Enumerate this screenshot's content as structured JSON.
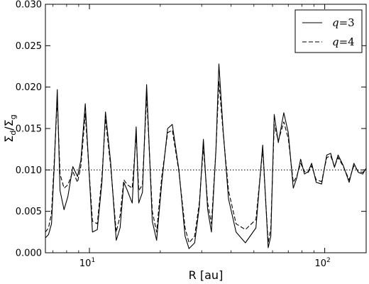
{
  "chart_data": {
    "type": "line",
    "xlabel": "R [au]",
    "ylabel": "Σd/Σg",
    "xscale": "log",
    "xlim": [
      6.5,
      150
    ],
    "ylim": [
      0,
      0.03
    ],
    "yticks": [
      "0.000",
      "0.005",
      "0.010",
      "0.015",
      "0.020",
      "0.025",
      "0.030"
    ],
    "xticks": [
      {
        "value": 10,
        "base": "10",
        "exp": "1"
      },
      {
        "value": 100,
        "base": "10",
        "exp": "2"
      }
    ],
    "grid": false,
    "legend_position": "top-right",
    "reference_line": {
      "y": 0.01,
      "style": "dotted"
    },
    "series": [
      {
        "name": "q=3",
        "label_var": "q",
        "label_eq": "=3",
        "style": "solid",
        "points": [
          [
            6.5,
            0.0018
          ],
          [
            6.7,
            0.0022
          ],
          [
            6.9,
            0.0035
          ],
          [
            7.1,
            0.011
          ],
          [
            7.3,
            0.0197
          ],
          [
            7.5,
            0.0075
          ],
          [
            7.8,
            0.0052
          ],
          [
            8.1,
            0.0068
          ],
          [
            8.5,
            0.0104
          ],
          [
            8.9,
            0.0092
          ],
          [
            9.2,
            0.0112
          ],
          [
            9.6,
            0.018
          ],
          [
            10.3,
            0.0025
          ],
          [
            10.8,
            0.0028
          ],
          [
            11.3,
            0.0085
          ],
          [
            11.7,
            0.017
          ],
          [
            12.3,
            0.011
          ],
          [
            13.0,
            0.0015
          ],
          [
            13.5,
            0.003
          ],
          [
            14.0,
            0.0085
          ],
          [
            14.5,
            0.0075
          ],
          [
            15.2,
            0.006
          ],
          [
            15.8,
            0.0152
          ],
          [
            16.2,
            0.006
          ],
          [
            16.8,
            0.0073
          ],
          [
            17.5,
            0.0203
          ],
          [
            18.5,
            0.0038
          ],
          [
            19.3,
            0.0015
          ],
          [
            20.3,
            0.0085
          ],
          [
            21.5,
            0.015
          ],
          [
            22.5,
            0.0155
          ],
          [
            24.0,
            0.01
          ],
          [
            25.5,
            0.002
          ],
          [
            26.5,
            0.0005
          ],
          [
            28.0,
            0.0012
          ],
          [
            29.3,
            0.0055
          ],
          [
            30.5,
            0.0137
          ],
          [
            31.8,
            0.0052
          ],
          [
            33.0,
            0.0025
          ],
          [
            34.5,
            0.0125
          ],
          [
            35.5,
            0.0228
          ],
          [
            37.0,
            0.0148
          ],
          [
            39.0,
            0.0065
          ],
          [
            42.0,
            0.0025
          ],
          [
            46.0,
            0.0012
          ],
          [
            51.0,
            0.003
          ],
          [
            54.5,
            0.013
          ],
          [
            57.5,
            0.0006
          ],
          [
            59.0,
            0.002
          ],
          [
            61.0,
            0.0167
          ],
          [
            63.5,
            0.0133
          ],
          [
            67.0,
            0.0169
          ],
          [
            70.0,
            0.0145
          ],
          [
            73.5,
            0.0078
          ],
          [
            76.0,
            0.009
          ],
          [
            79.0,
            0.0113
          ],
          [
            82.0,
            0.0095
          ],
          [
            85.0,
            0.0098
          ],
          [
            88.0,
            0.0108
          ],
          [
            92.0,
            0.0085
          ],
          [
            97.0,
            0.0083
          ],
          [
            102.0,
            0.0118
          ],
          [
            106.0,
            0.012
          ],
          [
            110.0,
            0.0103
          ],
          [
            114.0,
            0.0118
          ],
          [
            120.0,
            0.0105
          ],
          [
            127.0,
            0.0085
          ],
          [
            133.0,
            0.0108
          ],
          [
            139.0,
            0.0097
          ],
          [
            145.0,
            0.0095
          ],
          [
            150.0,
            0.0102
          ]
        ]
      },
      {
        "name": "q=4",
        "label_var": "q",
        "label_eq": "=4",
        "style": "dashed",
        "points": [
          [
            6.5,
            0.0025
          ],
          [
            6.7,
            0.003
          ],
          [
            6.9,
            0.0048
          ],
          [
            7.1,
            0.0115
          ],
          [
            7.3,
            0.0185
          ],
          [
            7.5,
            0.0095
          ],
          [
            7.8,
            0.0078
          ],
          [
            8.1,
            0.0082
          ],
          [
            8.5,
            0.0098
          ],
          [
            8.9,
            0.0085
          ],
          [
            9.2,
            0.0105
          ],
          [
            9.6,
            0.0168
          ],
          [
            10.3,
            0.0038
          ],
          [
            10.8,
            0.0035
          ],
          [
            11.3,
            0.0092
          ],
          [
            11.7,
            0.0162
          ],
          [
            12.3,
            0.0105
          ],
          [
            13.0,
            0.0025
          ],
          [
            13.5,
            0.0045
          ],
          [
            14.0,
            0.0088
          ],
          [
            14.5,
            0.0082
          ],
          [
            15.2,
            0.0078
          ],
          [
            15.8,
            0.0142
          ],
          [
            16.2,
            0.0075
          ],
          [
            16.8,
            0.0082
          ],
          [
            17.5,
            0.019
          ],
          [
            18.5,
            0.005
          ],
          [
            19.3,
            0.0025
          ],
          [
            20.3,
            0.0092
          ],
          [
            21.5,
            0.0145
          ],
          [
            22.5,
            0.0148
          ],
          [
            24.0,
            0.0098
          ],
          [
            25.5,
            0.003
          ],
          [
            26.5,
            0.0012
          ],
          [
            28.0,
            0.002
          ],
          [
            29.3,
            0.006
          ],
          [
            30.5,
            0.0128
          ],
          [
            31.8,
            0.006
          ],
          [
            33.0,
            0.0035
          ],
          [
            34.5,
            0.0125
          ],
          [
            35.5,
            0.0207
          ],
          [
            37.0,
            0.0145
          ],
          [
            39.0,
            0.0075
          ],
          [
            42.0,
            0.0035
          ],
          [
            46.0,
            0.0028
          ],
          [
            51.0,
            0.004
          ],
          [
            54.5,
            0.0125
          ],
          [
            57.5,
            0.0012
          ],
          [
            59.0,
            0.003
          ],
          [
            61.0,
            0.0155
          ],
          [
            63.5,
            0.0135
          ],
          [
            67.0,
            0.0158
          ],
          [
            70.0,
            0.0138
          ],
          [
            73.5,
            0.0085
          ],
          [
            76.0,
            0.0092
          ],
          [
            79.0,
            0.0108
          ],
          [
            82.0,
            0.0098
          ],
          [
            85.0,
            0.0097
          ],
          [
            88.0,
            0.0105
          ],
          [
            92.0,
            0.0088
          ],
          [
            97.0,
            0.0086
          ],
          [
            102.0,
            0.0115
          ],
          [
            106.0,
            0.0117
          ],
          [
            110.0,
            0.0104
          ],
          [
            114.0,
            0.0115
          ],
          [
            120.0,
            0.0104
          ],
          [
            127.0,
            0.0088
          ],
          [
            133.0,
            0.0105
          ],
          [
            139.0,
            0.0098
          ],
          [
            145.0,
            0.0097
          ],
          [
            150.0,
            0.0101
          ]
        ]
      }
    ]
  }
}
